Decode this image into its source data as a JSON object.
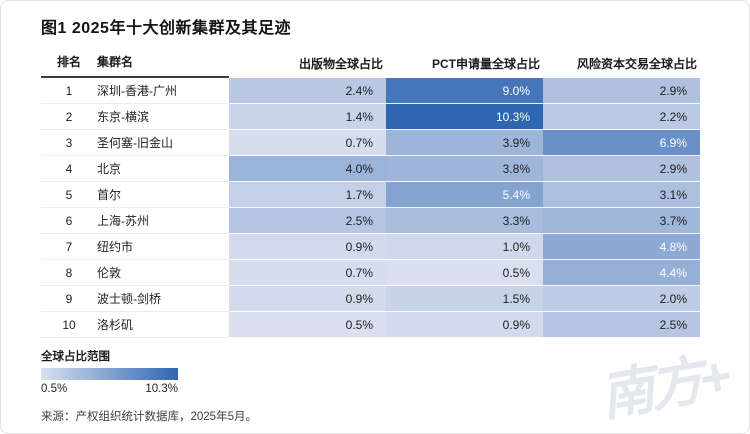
{
  "title": "图1 2025年十大创新集群及其足迹",
  "chart_data": {
    "type": "heatmap",
    "title": "图1 2025年十大创新集群及其足迹",
    "columns": [
      "排名",
      "集群名",
      "出版物全球占比",
      "PCT申请量全球占比",
      "风险资本交易全球占比"
    ],
    "rows": [
      {
        "rank": "1",
        "name": "深圳-香港-广州",
        "values": [
          2.4,
          9.0,
          2.9
        ]
      },
      {
        "rank": "2",
        "name": "东京-横滨",
        "values": [
          1.4,
          10.3,
          2.2
        ]
      },
      {
        "rank": "3",
        "name": "圣何塞-旧金山",
        "values": [
          0.7,
          3.9,
          6.9
        ]
      },
      {
        "rank": "4",
        "name": "北京",
        "values": [
          4.0,
          3.8,
          2.9
        ]
      },
      {
        "rank": "5",
        "name": "首尔",
        "values": [
          1.7,
          5.4,
          3.1
        ]
      },
      {
        "rank": "6",
        "name": "上海-苏州",
        "values": [
          2.5,
          3.3,
          3.7
        ]
      },
      {
        "rank": "7",
        "name": "纽约市",
        "values": [
          0.9,
          1.0,
          4.8
        ]
      },
      {
        "rank": "8",
        "name": "伦敦",
        "values": [
          0.7,
          0.5,
          4.4
        ]
      },
      {
        "rank": "9",
        "name": "波士顿-剑桥",
        "values": [
          0.9,
          1.5,
          2.0
        ]
      },
      {
        "rank": "10",
        "name": "洛杉矶",
        "values": [
          0.5,
          0.9,
          2.5
        ]
      }
    ],
    "value_suffix": "%",
    "color_scale": {
      "min": 0.5,
      "max": 10.3,
      "min_color": "#d9dfee",
      "max_color": "#2e66b2",
      "white_text_threshold": 4.2
    },
    "legend_position": "bottom-left"
  },
  "legend": {
    "label": "全球占比范围",
    "min_label": "0.5%",
    "max_label": "10.3%"
  },
  "source": "来源：产权组织统计数据库，2025年5月。",
  "watermark": "南方+"
}
